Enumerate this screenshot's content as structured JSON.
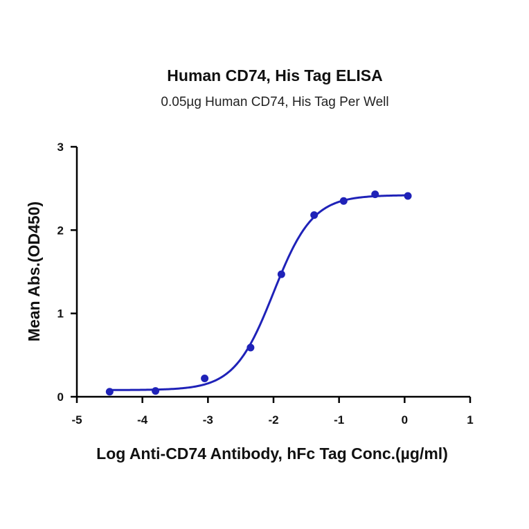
{
  "chart_data": {
    "type": "line",
    "title": "Human CD74, His Tag ELISA",
    "subtitle": "0.05µg Human CD74, His Tag Per Well",
    "xlabel": "Log Anti-CD74 Antibody, hFc Tag Conc.(µg/ml)",
    "ylabel": "Mean Abs.(OD450)",
    "xlim": [
      -5,
      1
    ],
    "ylim": [
      0,
      3
    ],
    "x_ticks": [
      "-5",
      "-4",
      "-3",
      "-2",
      "-1",
      "0",
      "1"
    ],
    "y_ticks": [
      "0",
      "1",
      "2",
      "3"
    ],
    "grid": false,
    "color": "#1f22b8",
    "series": [
      {
        "x": [
          -4.5,
          -3.8,
          -3.05,
          -2.35,
          -1.88,
          -1.38,
          -0.93,
          -0.45,
          0.05
        ],
        "y": [
          0.06,
          0.07,
          0.22,
          0.59,
          1.47,
          2.18,
          2.35,
          2.43,
          2.41
        ]
      }
    ],
    "fit": {
      "bottom": 0.08,
      "top": 2.42,
      "logEC50": -2.0,
      "hill": 1.45
    }
  }
}
